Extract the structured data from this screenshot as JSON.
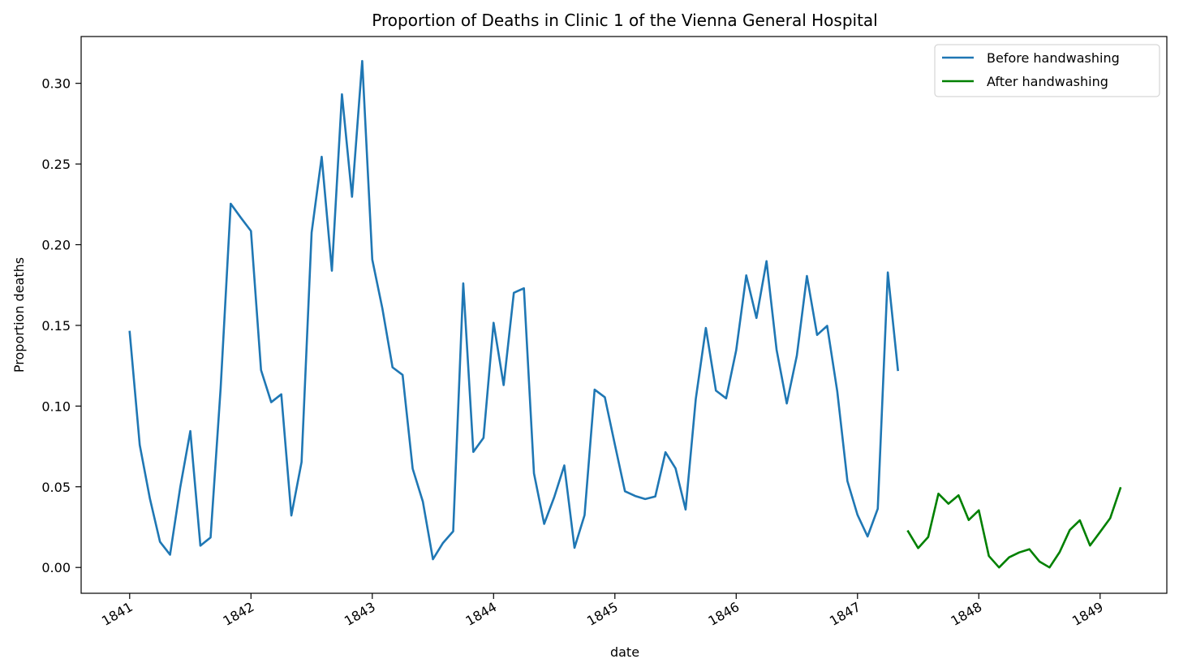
{
  "chart_data": {
    "type": "line",
    "title": "Proportion of Deaths in Clinic 1 of the Vienna General Hospital",
    "xlabel": "date",
    "ylabel": "Proportion deaths",
    "xlim": [
      1840.6,
      1849.55
    ],
    "ylim": [
      -0.016,
      0.329
    ],
    "x_ticks": [
      1841,
      1842,
      1843,
      1844,
      1845,
      1846,
      1847,
      1848,
      1849
    ],
    "x_tick_labels": [
      "1841",
      "1842",
      "1843",
      "1844",
      "1845",
      "1846",
      "1847",
      "1848",
      "1849"
    ],
    "y_ticks": [
      0.0,
      0.05,
      0.1,
      0.15,
      0.2,
      0.25,
      0.3
    ],
    "y_tick_labels": [
      "0.00",
      "0.05",
      "0.10",
      "0.15",
      "0.20",
      "0.25",
      "0.30"
    ],
    "grid": false,
    "legend_position": "top-right",
    "series": [
      {
        "name": "Before handwashing",
        "color": "#1f77b4",
        "x": [
          1841.0,
          1841.083,
          1841.167,
          1841.25,
          1841.333,
          1841.417,
          1841.5,
          1841.583,
          1841.667,
          1841.75,
          1841.833,
          1841.917,
          1842.0,
          1842.083,
          1842.167,
          1842.25,
          1842.333,
          1842.417,
          1842.5,
          1842.583,
          1842.667,
          1842.75,
          1842.833,
          1842.917,
          1843.0,
          1843.083,
          1843.167,
          1843.25,
          1843.333,
          1843.417,
          1843.5,
          1843.583,
          1843.667,
          1843.75,
          1843.833,
          1843.917,
          1844.0,
          1844.083,
          1844.167,
          1844.25,
          1844.333,
          1844.417,
          1844.5,
          1844.583,
          1844.667,
          1844.75,
          1844.833,
          1844.917,
          1845.0,
          1845.083,
          1845.167,
          1845.25,
          1845.333,
          1845.417,
          1845.5,
          1845.583,
          1845.667,
          1845.75,
          1845.833,
          1845.917,
          1846.0,
          1846.083,
          1846.167,
          1846.25,
          1846.333,
          1846.417,
          1846.5,
          1846.583,
          1846.667,
          1846.75,
          1846.833,
          1846.917,
          1847.0,
          1847.083,
          1847.167,
          1847.25,
          1847.333
        ],
        "values": [
          0.146,
          0.0759,
          0.0426,
          0.0159,
          0.0079,
          0.0497,
          0.0845,
          0.0135,
          0.0186,
          0.1111,
          0.2254,
          0.2167,
          0.2085,
          0.1223,
          0.1024,
          0.1073,
          0.0322,
          0.0653,
          0.2075,
          0.2545,
          0.1839,
          0.2932,
          0.2297,
          0.3138,
          0.1908,
          0.1606,
          0.124,
          0.1193,
          0.0612,
          0.0408,
          0.0051,
          0.0152,
          0.0224,
          0.176,
          0.0716,
          0.0803,
          0.1516,
          0.113,
          0.1702,
          0.173,
          0.0583,
          0.027,
          0.0436,
          0.0632,
          0.0122,
          0.0324,
          0.1102,
          0.1055,
          0.0761,
          0.0472,
          0.0443,
          0.0424,
          0.044,
          0.0714,
          0.0614,
          0.0359,
          0.1045,
          0.1484,
          0.1096,
          0.1048,
          0.1346,
          0.181,
          0.1546,
          0.1898,
          0.1349,
          0.1016,
          0.1313,
          0.1806,
          0.1441,
          0.1497,
          0.1092,
          0.0535,
          0.0326,
          0.0192,
          0.0364,
          0.1828,
          0.1224
        ]
      },
      {
        "name": "After handwashing",
        "color": "#008000",
        "x": [
          1847.417,
          1847.5,
          1847.583,
          1847.667,
          1847.75,
          1847.833,
          1847.917,
          1848.0,
          1848.083,
          1848.167,
          1848.25,
          1848.333,
          1848.417,
          1848.5,
          1848.583,
          1848.667,
          1848.75,
          1848.833,
          1848.917,
          1849.0,
          1849.083,
          1849.167
        ],
        "values": [
          0.0224,
          0.012,
          0.0189,
          0.0457,
          0.0395,
          0.0447,
          0.0294,
          0.0354,
          0.0071,
          0.0,
          0.0063,
          0.0093,
          0.0113,
          0.0037,
          0.0,
          0.0096,
          0.0232,
          0.0292,
          0.0136,
          0.022,
          0.0305,
          0.0491
        ]
      }
    ]
  }
}
